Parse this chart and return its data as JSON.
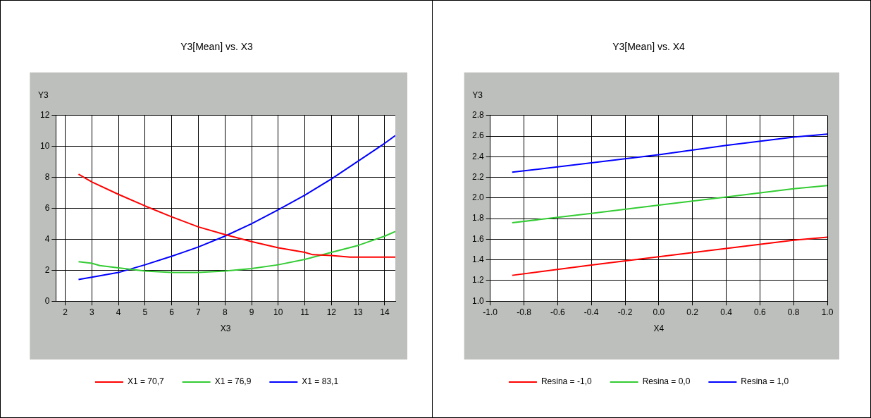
{
  "chart_data": [
    {
      "type": "line",
      "title": "Y3[Mean] vs. X3",
      "xlabel": "X3",
      "ylabel": "Y3",
      "xlim": [
        1.65,
        14.4
      ],
      "xticks": [
        2,
        3,
        4,
        5,
        6,
        7,
        8,
        9,
        10,
        11,
        12,
        13,
        14
      ],
      "ylim": [
        0,
        12
      ],
      "yticks": [
        0,
        2,
        4,
        6,
        8,
        10,
        12
      ],
      "grid": true,
      "legend": "bottom",
      "marker": "none",
      "line_style": "solid",
      "series": [
        {
          "name": "X1 = 70,7",
          "color": "#ff0000",
          "x": [
            2.5,
            3,
            4,
            5,
            6,
            7,
            8,
            9,
            10,
            11,
            11.3,
            12,
            12.7,
            14.4
          ],
          "values": [
            8.2,
            7.7,
            6.9,
            6.15,
            5.45,
            4.8,
            4.3,
            3.85,
            3.45,
            3.15,
            3.0,
            2.95,
            2.85,
            2.85
          ]
        },
        {
          "name": "X1 = 76,9",
          "color": "#33cc33",
          "x": [
            2.5,
            3,
            3.3,
            4,
            5,
            6,
            7,
            8,
            9,
            10,
            11,
            12,
            13,
            14,
            14.4
          ],
          "values": [
            2.55,
            2.45,
            2.3,
            2.15,
            1.95,
            1.85,
            1.85,
            1.95,
            2.1,
            2.35,
            2.7,
            3.15,
            3.6,
            4.2,
            4.5
          ]
        },
        {
          "name": "X1 = 83,1",
          "color": "#0000ff",
          "x": [
            2.5,
            3,
            4,
            5,
            6,
            7,
            8,
            9,
            10,
            11,
            12,
            13,
            14,
            14.4
          ],
          "values": [
            1.4,
            1.55,
            1.85,
            2.35,
            2.9,
            3.5,
            4.2,
            5.0,
            5.9,
            6.85,
            7.9,
            9.05,
            10.2,
            10.7
          ]
        }
      ]
    },
    {
      "type": "line",
      "title": "Y3[Mean] vs. X4",
      "xlabel": "X4",
      "ylabel": "Y3",
      "xlim": [
        -1,
        1
      ],
      "xticks": [
        {
          "value": -1,
          "label": "-1.0"
        },
        {
          "value": -0.8,
          "label": "-0.8"
        },
        {
          "value": -0.6,
          "label": "-0.6"
        },
        {
          "value": -0.4,
          "label": "-0.4"
        },
        {
          "value": -0.2,
          "label": "-0.2"
        },
        {
          "value": 0,
          "label": "0.0"
        },
        {
          "value": 0.2,
          "label": "0.2"
        },
        {
          "value": 0.4,
          "label": "0.4"
        },
        {
          "value": 0.6,
          "label": "0.6"
        },
        {
          "value": 0.8,
          "label": "0.8"
        },
        {
          "value": 1,
          "label": "1.0"
        }
      ],
      "ylim": [
        1,
        2.8
      ],
      "yticks": [
        {
          "value": 1,
          "label": "1.0"
        },
        {
          "value": 1.2,
          "label": "1.2"
        },
        {
          "value": 1.4,
          "label": "1.4"
        },
        {
          "value": 1.6,
          "label": "1.6"
        },
        {
          "value": 1.8,
          "label": "1.8"
        },
        {
          "value": 2,
          "label": "2.0"
        },
        {
          "value": 2.2,
          "label": "2.2"
        },
        {
          "value": 2.4,
          "label": "2.4"
        },
        {
          "value": 2.6,
          "label": "2.6"
        },
        {
          "value": 2.8,
          "label": "2.8"
        }
      ],
      "grid": true,
      "legend": "bottom",
      "marker": "none",
      "line_style": "solid",
      "series": [
        {
          "name": "Resina = -1,0",
          "color": "#ff0000",
          "x": [
            -0.87,
            -0.4,
            0,
            0.4,
            0.8,
            1
          ],
          "values": [
            1.25,
            1.35,
            1.43,
            1.51,
            1.59,
            1.62
          ]
        },
        {
          "name": "Resina = 0,0",
          "color": "#33cc33",
          "x": [
            -0.87,
            -0.4,
            0,
            0.4,
            0.8,
            1
          ],
          "values": [
            1.76,
            1.85,
            1.93,
            2.01,
            2.09,
            2.12
          ]
        },
        {
          "name": "Resina = 1,0",
          "color": "#0000ff",
          "x": [
            -0.87,
            -0.4,
            0,
            0.4,
            0.8,
            1
          ],
          "values": [
            2.25,
            2.34,
            2.42,
            2.51,
            2.59,
            2.62
          ]
        }
      ]
    }
  ]
}
